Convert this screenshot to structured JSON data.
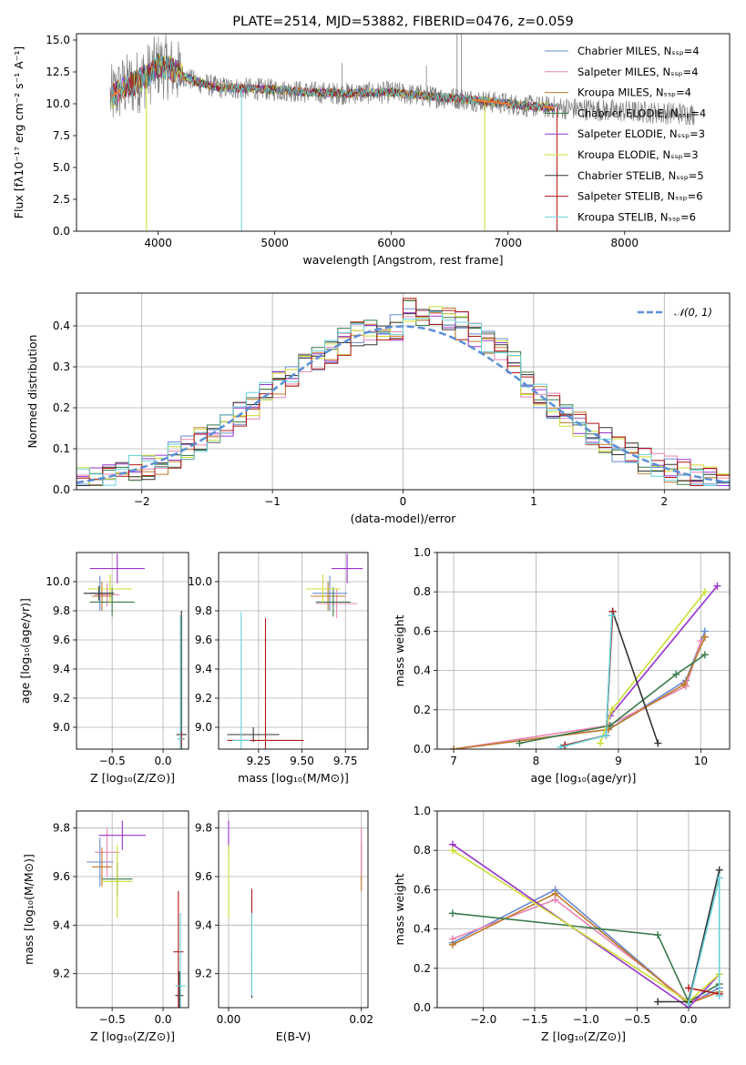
{
  "colors": {
    "Chabrier MILES": "#6688cc",
    "Salpeter MILES": "#e686b4",
    "Kroupa MILES": "#c07a2a",
    "Chabrier ELODIE": "#3a7a4a",
    "Salpeter ELODIE": "#9933cc",
    "Kroupa ELODIE": "#ccdd33",
    "Chabrier STELIB": "#333333",
    "Salpeter STELIB": "#b01818",
    "Kroupa STELIB": "#66d0d8",
    "data": "#808080",
    "grid": "#b0b0b0",
    "orange": "#ee7733",
    "normal": "#5b8fd6"
  },
  "chart_data": [
    {
      "id": "spectrum",
      "type": "line",
      "title": "PLATE=2514, MJD=53882, FIBERID=0476, z=0.059",
      "xlabel": "wavelength [Angstrom, rest frame]",
      "ylabel": "Flux [fλ10⁻¹⁷ erg cm⁻² s⁻¹ A⁻¹]",
      "xlim": [
        3300,
        8900
      ],
      "ylim": [
        0,
        15.5
      ],
      "xticks": [
        "4000",
        "5000",
        "6000",
        "7000",
        "8000"
      ],
      "yticks": [
        "0.0",
        "2.5",
        "5.0",
        "7.5",
        "10.0",
        "12.5",
        "15.0"
      ],
      "legend_position": "top-right",
      "legend": [
        "Chabrier MILES, Nₛₛₚ=4",
        "Salpeter MILES, Nₛₛₚ=4",
        "Kroupa MILES, Nₛₛₚ=4",
        "Chabrier ELODIE, Nₛₛₚ=4",
        "Salpeter ELODIE, Nₛₛₚ=3",
        "Kroupa ELODIE, Nₛₛₚ=3",
        "Chabrier STELIB, Nₛₛₚ=5",
        "Salpeter STELIB, Nₛₛₚ=6",
        "Kroupa STELIB, Nₛₛₚ=6"
      ],
      "continuum": [
        [
          3600,
          10.5
        ],
        [
          3700,
          11.3
        ],
        [
          3800,
          11.6
        ],
        [
          3900,
          12.2
        ],
        [
          4000,
          13.0
        ],
        [
          4100,
          12.8
        ],
        [
          4300,
          11.8
        ],
        [
          4500,
          11.3
        ],
        [
          4700,
          11.2
        ],
        [
          5000,
          11.1
        ],
        [
          5300,
          10.9
        ],
        [
          5600,
          10.8
        ],
        [
          6000,
          10.9
        ],
        [
          6300,
          10.6
        ],
        [
          6600,
          10.4
        ],
        [
          7000,
          10.0
        ],
        [
          7200,
          9.8
        ],
        [
          7400,
          9.7
        ],
        [
          8000,
          9.4
        ],
        [
          8600,
          9.2
        ]
      ],
      "model_range": [
        3590,
        7400
      ],
      "features": [
        [
          3900,
          0.0,
          "Kroupa ELODIE"
        ],
        [
          4715,
          0.0,
          "Kroupa STELIB"
        ],
        [
          6800,
          0.0,
          "Kroupa ELODIE"
        ],
        [
          7420,
          0.0,
          "Salpeter STELIB"
        ]
      ],
      "emission": [
        [
          6563,
          15.5
        ],
        [
          6600,
          15.5
        ],
        [
          5577,
          13.2
        ],
        [
          6300,
          13.0
        ]
      ]
    },
    {
      "id": "residuals",
      "type": "bar",
      "xlabel": "(data-model)/error",
      "ylabel": "Normed distribution",
      "xlim": [
        -2.5,
        2.5
      ],
      "ylim": [
        0,
        0.48
      ],
      "xticks": [
        "−2",
        "−1",
        "0",
        "1",
        "2"
      ],
      "yticks": [
        "0.0",
        "0.1",
        "0.2",
        "0.3",
        "0.4"
      ],
      "legend": "𝒩(0, 1)",
      "legend_position": "top-right",
      "bin_width": 0.1
    },
    {
      "id": "age_vs_Z",
      "type": "scatter",
      "xlabel": "Z [log₁₀(Z/Z⊙)]",
      "ylabel": "age  [log₁₀(age/yr)]",
      "xlim": [
        -0.85,
        0.25
      ],
      "ylim": [
        8.85,
        10.2
      ],
      "xticks": [
        "−0.5",
        "0.0"
      ],
      "yticks": [
        "9.0",
        "9.2",
        "9.4",
        "9.6",
        "9.8",
        "10.0"
      ],
      "points": [
        {
          "series": "Chabrier MILES",
          "x": -0.62,
          "y": 9.92,
          "ex": 0.1,
          "ey": 0.12
        },
        {
          "series": "Salpeter MILES",
          "x": -0.55,
          "y": 9.91,
          "ex": 0.12,
          "ey": 0.08
        },
        {
          "series": "Kroupa MILES",
          "x": -0.6,
          "y": 9.9,
          "ex": 0.1,
          "ey": 0.1
        },
        {
          "series": "Chabrier ELODIE",
          "x": -0.5,
          "y": 9.86,
          "ex": 0.22,
          "ey": 0.1
        },
        {
          "series": "Salpeter ELODIE",
          "x": -0.45,
          "y": 10.09,
          "ex": 0.27,
          "ey": 0.1
        },
        {
          "series": "Kroupa ELODIE",
          "x": -0.52,
          "y": 9.95,
          "ex": 0.22,
          "ey": 0.1
        },
        {
          "series": "Chabrier STELIB",
          "x": -0.63,
          "y": 9.92,
          "ex": 0.15,
          "ey": 0.05
        },
        {
          "series": "Chabrier STELIB",
          "x": 0.18,
          "y": 8.95,
          "ex": 0.05,
          "ey": 0.85
        },
        {
          "series": "Salpeter STELIB",
          "x": 0.18,
          "y": 8.92,
          "ex": 0.03,
          "ey": 0.05
        },
        {
          "series": "Kroupa STELIB",
          "x": 0.17,
          "y": 8.92,
          "ex": 0.03,
          "ey": 0.85
        }
      ]
    },
    {
      "id": "age_vs_mass",
      "type": "scatter",
      "xlabel": "mass [log₁₀(M/M⊙)]",
      "ylabel": "",
      "xlim": [
        9.02,
        9.88
      ],
      "ylim": [
        8.85,
        10.2
      ],
      "xticks": [
        "9.25",
        "9.50",
        "9.75"
      ],
      "yticks": [
        "9.0",
        "9.2",
        "9.4",
        "9.6",
        "9.8",
        "10.0"
      ],
      "points": [
        {
          "series": "Chabrier MILES",
          "x": 9.66,
          "y": 9.92,
          "ex": 0.1,
          "ey": 0.12
        },
        {
          "series": "Salpeter MILES",
          "x": 9.7,
          "y": 9.85,
          "ex": 0.12,
          "ey": 0.1
        },
        {
          "series": "Kroupa MILES",
          "x": 9.65,
          "y": 9.9,
          "ex": 0.1,
          "ey": 0.1
        },
        {
          "series": "Chabrier ELODIE",
          "x": 9.68,
          "y": 9.86,
          "ex": 0.1,
          "ey": 0.1
        },
        {
          "series": "Salpeter ELODIE",
          "x": 9.76,
          "y": 10.09,
          "ex": 0.09,
          "ey": 0.1
        },
        {
          "series": "Kroupa ELODIE",
          "x": 9.62,
          "y": 9.95,
          "ex": 0.1,
          "ey": 0.1
        },
        {
          "series": "Chabrier STELIB",
          "x": 9.22,
          "y": 8.95,
          "ex": 0.15,
          "ey": 0.05
        },
        {
          "series": "Salpeter STELIB",
          "x": 9.29,
          "y": 8.91,
          "ex": 0.22,
          "ey": 0.84
        },
        {
          "series": "Kroupa STELIB",
          "x": 9.15,
          "y": 8.91,
          "ex": 0.05,
          "ey": 0.88
        }
      ]
    },
    {
      "id": "weight_vs_age",
      "type": "line",
      "xlabel": "age  [log₁₀(age/yr)]",
      "ylabel": "mass weight",
      "xlim": [
        6.8,
        10.35
      ],
      "ylim": [
        0,
        1.0
      ],
      "xticks": [
        "7",
        "8",
        "9",
        "10"
      ],
      "yticks": [
        "0.0",
        "0.2",
        "0.4",
        "0.6",
        "0.8",
        "1.0"
      ],
      "series": [
        {
          "name": "Chabrier MILES",
          "points": [
            [
              7.0,
              0.0
            ],
            [
              8.88,
              0.1
            ],
            [
              9.82,
              0.35
            ],
            [
              10.05,
              0.6
            ]
          ]
        },
        {
          "name": "Salpeter MILES",
          "points": [
            [
              7.0,
              0.0
            ],
            [
              8.88,
              0.12
            ],
            [
              9.82,
              0.32
            ],
            [
              10.0,
              0.55
            ]
          ]
        },
        {
          "name": "Kroupa MILES",
          "points": [
            [
              7.0,
              0.0
            ],
            [
              8.88,
              0.1
            ],
            [
              9.8,
              0.33
            ],
            [
              10.05,
              0.57
            ]
          ]
        },
        {
          "name": "Chabrier ELODIE",
          "points": [
            [
              7.8,
              0.03
            ],
            [
              8.9,
              0.12
            ],
            [
              9.7,
              0.38
            ],
            [
              10.05,
              0.48
            ]
          ]
        },
        {
          "name": "Salpeter ELODIE",
          "points": [
            [
              8.9,
              0.17
            ],
            [
              10.2,
              0.83
            ]
          ]
        },
        {
          "name": "Kroupa ELODIE",
          "points": [
            [
              8.78,
              0.03
            ],
            [
              8.92,
              0.2
            ],
            [
              10.05,
              0.8
            ]
          ]
        },
        {
          "name": "Chabrier STELIB",
          "points": [
            [
              8.35,
              0.02
            ],
            [
              8.85,
              0.07
            ],
            [
              8.93,
              0.7
            ],
            [
              9.48,
              0.03
            ]
          ]
        },
        {
          "name": "Salpeter STELIB",
          "points": [
            [
              8.35,
              0.02
            ],
            [
              8.85,
              0.07
            ],
            [
              8.93,
              0.7
            ]
          ]
        },
        {
          "name": "Kroupa STELIB",
          "points": [
            [
              8.3,
              0.01
            ],
            [
              8.85,
              0.07
            ],
            [
              8.92,
              0.68
            ]
          ]
        }
      ]
    },
    {
      "id": "mass_vs_Z",
      "type": "scatter",
      "xlabel": "Z [log₁₀(Z/Z⊙)]",
      "ylabel": "mass [log₁₀(M/M⊙)]",
      "xlim": [
        -0.85,
        0.25
      ],
      "ylim": [
        9.06,
        9.87
      ],
      "xticks": [
        "−0.5",
        "0.0"
      ],
      "yticks": [
        "9.2",
        "9.4",
        "9.6",
        "9.8"
      ],
      "points": [
        {
          "series": "Chabrier MILES",
          "x": -0.62,
          "y": 9.66,
          "ex": 0.13,
          "ey": 0.1
        },
        {
          "series": "Salpeter MILES",
          "x": -0.55,
          "y": 9.7,
          "ex": 0.12,
          "ey": 0.1
        },
        {
          "series": "Kroupa MILES",
          "x": -0.6,
          "y": 9.64,
          "ex": 0.1,
          "ey": 0.08
        },
        {
          "series": "Chabrier ELODIE",
          "x": -0.45,
          "y": 9.59,
          "ex": 0.15,
          "ey": 0.07
        },
        {
          "series": "Salpeter ELODIE",
          "x": -0.4,
          "y": 9.77,
          "ex": 0.23,
          "ey": 0.06
        },
        {
          "series": "Kroupa ELODIE",
          "x": -0.45,
          "y": 9.58,
          "ex": 0.15,
          "ey": 0.15
        },
        {
          "series": "Chabrier STELIB",
          "x": 0.16,
          "y": 9.11,
          "ex": 0.04,
          "ey": 0.1
        },
        {
          "series": "Salpeter STELIB",
          "x": 0.15,
          "y": 9.29,
          "ex": 0.05,
          "ey": 0.25
        },
        {
          "series": "Kroupa STELIB",
          "x": 0.17,
          "y": 9.15,
          "ex": 0.05,
          "ey": 0.3
        }
      ]
    },
    {
      "id": "mass_vs_ebv",
      "type": "scatter",
      "xlabel": "E(B-V)",
      "ylabel": "",
      "xlim": [
        -0.0015,
        0.021
      ],
      "ylim": [
        9.06,
        9.87
      ],
      "xticks": [
        "0.00",
        "0.02"
      ],
      "yticks": [
        "9.2",
        "9.4",
        "9.6",
        "9.8"
      ],
      "points": [
        {
          "series": "Salpeter ELODIE",
          "x": 0.0,
          "y": 9.77,
          "ex": 0,
          "ey": 0.06
        },
        {
          "series": "Kroupa ELODIE",
          "x": 0.0,
          "y": 9.58,
          "ex": 0,
          "ey": 0.15
        },
        {
          "series": "Chabrier STELIB",
          "x": 0.0035,
          "y": 9.2,
          "ex": 0,
          "ey": 0.1
        },
        {
          "series": "Salpeter STELIB",
          "x": 0.0035,
          "y": 9.4,
          "ex": 0,
          "ey": 0.15
        },
        {
          "series": "Kroupa STELIB",
          "x": 0.0035,
          "y": 9.28,
          "ex": 0,
          "ey": 0.17
        },
        {
          "series": "Kroupa MILES",
          "x": 0.02,
          "y": 9.64,
          "ex": 0,
          "ey": 0.1
        },
        {
          "series": "Salpeter MILES",
          "x": 0.02,
          "y": 9.7,
          "ex": 0,
          "ey": 0.1
        }
      ]
    },
    {
      "id": "weight_vs_Z",
      "type": "line",
      "xlabel": "Z [log₁₀(Z/Z⊙)]",
      "ylabel": "mass weight",
      "xlim": [
        -2.45,
        0.4
      ],
      "ylim": [
        0,
        1.0
      ],
      "xticks": [
        "−2.0",
        "−1.5",
        "−1.0",
        "−0.5",
        "0.0"
      ],
      "yticks": [
        "0.0",
        "0.2",
        "0.4",
        "0.6",
        "0.8",
        "1.0"
      ],
      "series": [
        {
          "name": "Chabrier MILES",
          "points": [
            [
              -2.3,
              0.33
            ],
            [
              -1.3,
              0.6
            ],
            [
              0.0,
              0.02
            ],
            [
              0.3,
              0.1
            ]
          ]
        },
        {
          "name": "Salpeter MILES",
          "points": [
            [
              -2.3,
              0.35
            ],
            [
              -1.3,
              0.55
            ],
            [
              0.0,
              0.03
            ],
            [
              0.3,
              0.08
            ]
          ]
        },
        {
          "name": "Kroupa MILES",
          "points": [
            [
              -2.3,
              0.32
            ],
            [
              -1.3,
              0.58
            ],
            [
              0.0,
              0.02
            ],
            [
              0.3,
              0.08
            ]
          ]
        },
        {
          "name": "Chabrier ELODIE",
          "points": [
            [
              -2.3,
              0.48
            ],
            [
              -0.3,
              0.37
            ],
            [
              0.0,
              0.03
            ],
            [
              0.3,
              0.12
            ]
          ]
        },
        {
          "name": "Salpeter ELODIE",
          "points": [
            [
              -2.3,
              0.83
            ],
            [
              0.0,
              0.0
            ],
            [
              0.3,
              0.17
            ]
          ]
        },
        {
          "name": "Kroupa ELODIE",
          "points": [
            [
              -2.3,
              0.8
            ],
            [
              0.0,
              0.03
            ],
            [
              0.3,
              0.17
            ]
          ]
        },
        {
          "name": "Chabrier STELIB",
          "points": [
            [
              -0.3,
              0.03
            ],
            [
              0.0,
              0.03
            ],
            [
              0.3,
              0.7
            ]
          ]
        },
        {
          "name": "Salpeter STELIB",
          "points": [
            [
              0.0,
              0.1
            ],
            [
              0.3,
              0.07
            ]
          ]
        },
        {
          "name": "Kroupa STELIB",
          "points": [
            [
              0.0,
              0.02
            ],
            [
              0.3,
              0.66
            ],
            [
              0.3,
              0.06
            ]
          ]
        }
      ]
    }
  ]
}
